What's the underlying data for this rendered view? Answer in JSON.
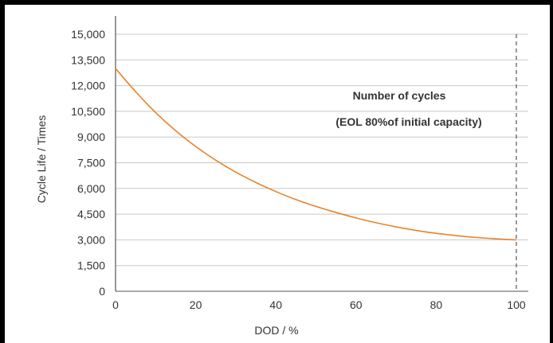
{
  "chart_data": {
    "type": "line",
    "title": "",
    "xlabel": "DOD / %",
    "ylabel": "Cycle Life / Times",
    "xlim": [
      0,
      100
    ],
    "ylim": [
      0,
      15000
    ],
    "x_ticks": [
      0,
      20,
      40,
      60,
      80,
      100
    ],
    "y_ticks": [
      0,
      1500,
      3000,
      4500,
      6000,
      7500,
      9000,
      10500,
      12000,
      13500,
      15000
    ],
    "y_tick_labels": [
      "0",
      "1,500",
      "3,000",
      "4,500",
      "6,000",
      "7,500",
      "9,000",
      "10,500",
      "12,000",
      "13,500",
      "15,000"
    ],
    "grid": "horizontal",
    "series": [
      {
        "color": "#e8832a",
        "x": [
          0,
          5,
          10,
          15,
          20,
          25,
          30,
          35,
          40,
          45,
          50,
          55,
          60,
          65,
          70,
          75,
          80,
          85,
          90,
          95,
          100
        ],
        "y": [
          13000,
          11650,
          10430,
          9370,
          8450,
          7650,
          6950,
          6350,
          5820,
          5350,
          4950,
          4600,
          4280,
          4000,
          3760,
          3550,
          3380,
          3250,
          3140,
          3060,
          3000
        ]
      }
    ],
    "reference_line": {
      "x": 100,
      "style": "dashed"
    },
    "annotation": {
      "line1": "Number of cycles",
      "line2": "(EOL 80%of initial capacity)"
    }
  }
}
